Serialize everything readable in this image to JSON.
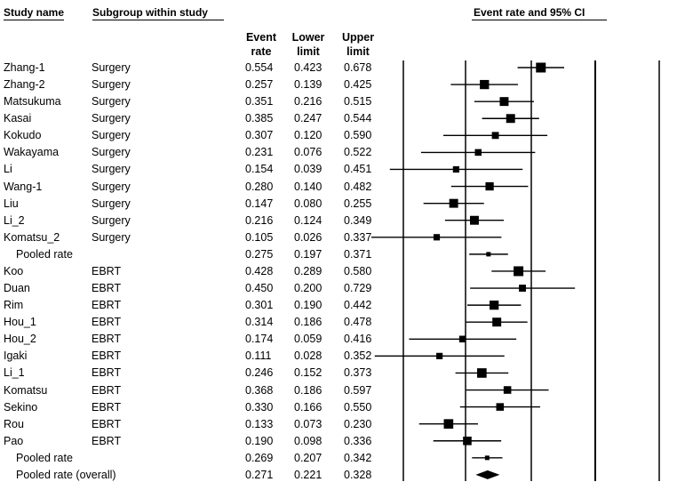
{
  "headers": {
    "study_name": "Study name",
    "subgroup": "Subgroup within study",
    "event_rate": [
      "Event",
      "rate"
    ],
    "lower": [
      "Lower",
      "limit"
    ],
    "upper": [
      "Upper",
      "limit"
    ],
    "plot_title": "Event rate and 95% CI"
  },
  "chart_data": {
    "type": "forest",
    "title": "Event rate and 95% CI",
    "columns": [
      "Study name",
      "Subgroup within study",
      "Event rate",
      "Lower limit",
      "Upper limit"
    ],
    "rows": [
      {
        "study": "Zhang-1",
        "subgroup": "Surgery",
        "rate": "0.554",
        "lower": "0.423",
        "upper": "0.678",
        "kind": "study",
        "weight": 1.0
      },
      {
        "study": "Zhang-2",
        "subgroup": "Surgery",
        "rate": "0.257",
        "lower": "0.139",
        "upper": "0.425",
        "kind": "study",
        "weight": 0.9
      },
      {
        "study": "Matsukuma",
        "subgroup": "Surgery",
        "rate": "0.351",
        "lower": "0.216",
        "upper": "0.515",
        "kind": "study",
        "weight": 0.85
      },
      {
        "study": "Kasai",
        "subgroup": "Surgery",
        "rate": "0.385",
        "lower": "0.247",
        "upper": "0.544",
        "kind": "study",
        "weight": 0.85
      },
      {
        "study": "Kokudo",
        "subgroup": "Surgery",
        "rate": "0.307",
        "lower": "0.120",
        "upper": "0.590",
        "kind": "study",
        "weight": 0.55
      },
      {
        "study": "Wakayama",
        "subgroup": "Surgery",
        "rate": "0.231",
        "lower": "0.076",
        "upper": "0.522",
        "kind": "study",
        "weight": 0.5
      },
      {
        "study": "Li",
        "subgroup": "Surgery",
        "rate": "0.154",
        "lower": "0.039",
        "upper": "0.451",
        "kind": "study",
        "weight": 0.45
      },
      {
        "study": "Wang-1",
        "subgroup": "Surgery",
        "rate": "0.280",
        "lower": "0.140",
        "upper": "0.482",
        "kind": "study",
        "weight": 0.75
      },
      {
        "study": "Liu",
        "subgroup": "Surgery",
        "rate": "0.147",
        "lower": "0.080",
        "upper": "0.255",
        "kind": "study",
        "weight": 0.85
      },
      {
        "study": "Li_2",
        "subgroup": "Surgery",
        "rate": "0.216",
        "lower": "0.124",
        "upper": "0.349",
        "kind": "study",
        "weight": 0.85
      },
      {
        "study": "Komatsu_2",
        "subgroup": "Surgery",
        "rate": "0.105",
        "lower": "0.026",
        "upper": "0.337",
        "kind": "study",
        "weight": 0.45
      },
      {
        "study": "Pooled rate",
        "subgroup": "",
        "rate": "0.275",
        "lower": "0.197",
        "upper": "0.371",
        "kind": "pooled",
        "weight": 0.4
      },
      {
        "study": "Koo",
        "subgroup": "EBRT",
        "rate": "0.428",
        "lower": "0.289",
        "upper": "0.580",
        "kind": "study",
        "weight": 1.0
      },
      {
        "study": "Duan",
        "subgroup": "EBRT",
        "rate": "0.450",
        "lower": "0.200",
        "upper": "0.729",
        "kind": "study",
        "weight": 0.55
      },
      {
        "study": "Rim",
        "subgroup": "EBRT",
        "rate": "0.301",
        "lower": "0.190",
        "upper": "0.442",
        "kind": "study",
        "weight": 0.9
      },
      {
        "study": "Hou_1",
        "subgroup": "EBRT",
        "rate": "0.314",
        "lower": "0.186",
        "upper": "0.478",
        "kind": "study",
        "weight": 0.85
      },
      {
        "study": "Hou_2",
        "subgroup": "EBRT",
        "rate": "0.174",
        "lower": "0.059",
        "upper": "0.416",
        "kind": "study",
        "weight": 0.5
      },
      {
        "study": "Igaki",
        "subgroup": "EBRT",
        "rate": "0.111",
        "lower": "0.028",
        "upper": "0.352",
        "kind": "study",
        "weight": 0.45
      },
      {
        "study": "Li_1",
        "subgroup": "EBRT",
        "rate": "0.246",
        "lower": "0.152",
        "upper": "0.373",
        "kind": "study",
        "weight": 0.95
      },
      {
        "study": "Komatsu",
        "subgroup": "EBRT",
        "rate": "0.368",
        "lower": "0.186",
        "upper": "0.597",
        "kind": "study",
        "weight": 0.65
      },
      {
        "study": "Sekino",
        "subgroup": "EBRT",
        "rate": "0.330",
        "lower": "0.166",
        "upper": "0.550",
        "kind": "study",
        "weight": 0.65
      },
      {
        "study": "Rou",
        "subgroup": "EBRT",
        "rate": "0.133",
        "lower": "0.073",
        "upper": "0.230",
        "kind": "study",
        "weight": 0.95
      },
      {
        "study": "Pao",
        "subgroup": "EBRT",
        "rate": "0.190",
        "lower": "0.098",
        "upper": "0.336",
        "kind": "study",
        "weight": 0.8
      },
      {
        "study": "Pooled rate",
        "subgroup": "",
        "rate": "0.269",
        "lower": "0.207",
        "upper": "0.342",
        "kind": "pooled",
        "weight": 0.4
      },
      {
        "study": "Pooled rate (overall)",
        "subgroup": "",
        "rate": "0.271",
        "lower": "0.221",
        "upper": "0.328",
        "kind": "overall",
        "weight": 1.0
      }
    ],
    "xlim": [
      -1.0,
      1.0
    ],
    "reference_lines": [
      -1.0,
      -0.5,
      0.0,
      0.5,
      1.0
    ],
    "marker_color": "#000000"
  }
}
